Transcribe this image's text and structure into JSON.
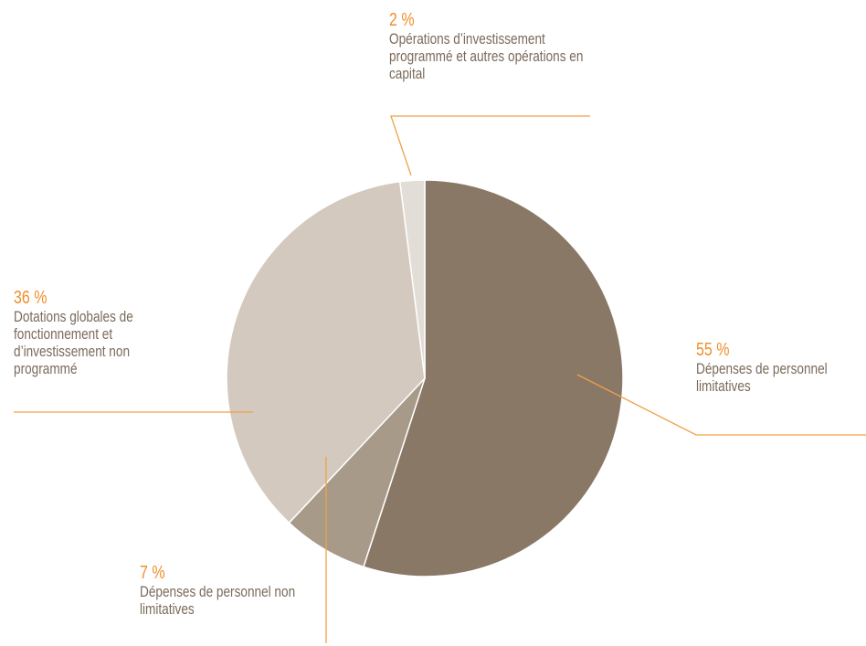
{
  "chart_data": {
    "type": "pie",
    "categories": [
      "Dépenses de personnel limitatives",
      "Dépenses de personnel non limitatives",
      "Dotations globales de fonctionnement et d’investissement non programmé",
      "Opérations d’investissement programmé et autres opérations en capital"
    ],
    "values": [
      55,
      7,
      36,
      2
    ],
    "value_labels": [
      "55 %",
      "7 %",
      "36 %",
      "2 %"
    ],
    "colors": [
      "#8a7866",
      "#a89a89",
      "#d3c9be",
      "#e3ddd7"
    ]
  }
}
